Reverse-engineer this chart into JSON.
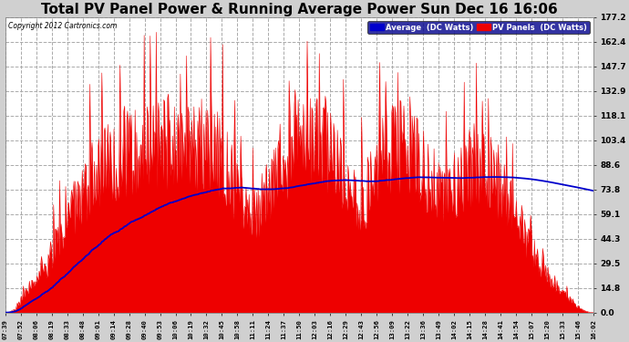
{
  "title": "Total PV Panel Power & Running Average Power Sun Dec 16 16:06",
  "copyright": "Copyright 2012 Cartronics.com",
  "legend_avg": "Average  (DC Watts)",
  "legend_pv": "PV Panels  (DC Watts)",
  "yticks": [
    0.0,
    14.8,
    29.5,
    44.3,
    59.1,
    73.8,
    88.6,
    103.4,
    118.1,
    132.9,
    147.7,
    162.4,
    177.2
  ],
  "ymax": 177.2,
  "ymin": 0.0,
  "background_color": "#d0d0d0",
  "plot_bg_color": "#ffffff",
  "grid_color": "#aaaaaa",
  "pv_color": "#ee0000",
  "avg_color": "#0000cc",
  "title_fontsize": 11,
  "xtick_labels": [
    "07:39",
    "07:52",
    "08:06",
    "08:19",
    "08:33",
    "08:48",
    "09:01",
    "09:14",
    "09:28",
    "09:40",
    "09:53",
    "10:06",
    "10:19",
    "10:32",
    "10:45",
    "10:58",
    "11:11",
    "11:24",
    "11:37",
    "11:50",
    "12:03",
    "12:16",
    "12:29",
    "12:43",
    "12:56",
    "13:09",
    "13:22",
    "13:36",
    "13:49",
    "14:02",
    "14:15",
    "14:28",
    "14:41",
    "14:54",
    "15:07",
    "15:20",
    "15:33",
    "15:46",
    "16:02"
  ]
}
